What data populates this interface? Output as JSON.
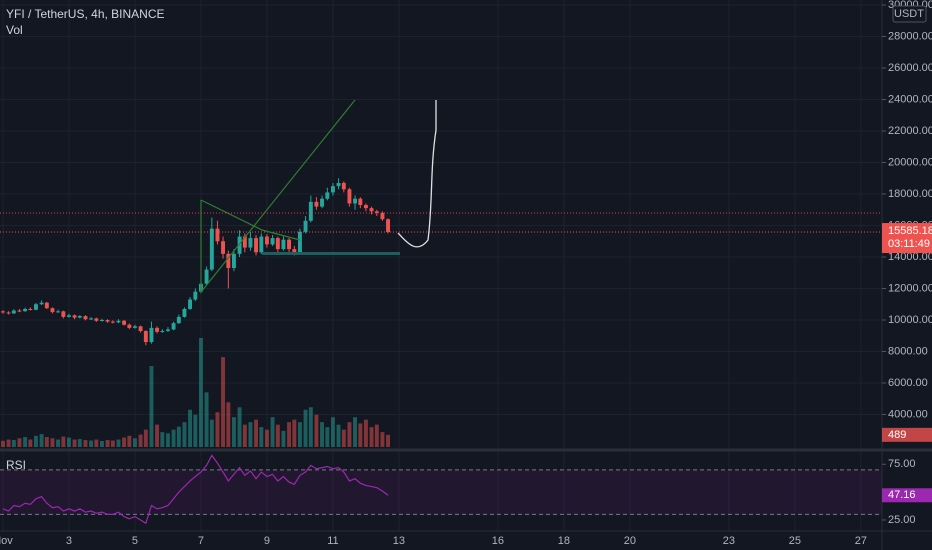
{
  "chart_data": {
    "type": "candlestick",
    "title": "YFI / TetherUS, 4h, BINANCE",
    "currency": "USDT",
    "countdown": "03:11:49",
    "up_color": "#26a69a",
    "down_color": "#ef5350",
    "grid": true,
    "x": [
      1,
      1.17,
      1.33,
      1.5,
      1.67,
      1.83,
      2,
      2.17,
      2.33,
      2.5,
      2.67,
      2.83,
      3,
      3.17,
      3.33,
      3.5,
      3.67,
      3.83,
      4,
      4.17,
      4.33,
      4.5,
      4.67,
      4.83,
      5,
      5.17,
      5.33,
      5.5,
      5.67,
      5.83,
      6,
      6.17,
      6.33,
      6.5,
      6.67,
      6.83,
      7,
      7.17,
      7.33,
      7.5,
      7.67,
      7.83,
      8,
      8.17,
      8.33,
      8.5,
      8.67,
      8.83,
      9,
      9.17,
      9.33,
      9.5,
      9.67,
      9.83,
      10,
      10.17,
      10.33,
      10.5,
      10.67,
      10.83,
      11,
      11.17,
      11.33,
      11.5,
      11.67,
      11.83,
      12,
      12.17,
      12.33,
      12.5,
      12.67
    ],
    "open": [
      10550,
      10480,
      10420,
      10600,
      10560,
      10700,
      10650,
      11000,
      11100,
      10750,
      10500,
      10550,
      10200,
      10300,
      10150,
      10250,
      10050,
      10100,
      9950,
      10000,
      9900,
      9850,
      9950,
      9700,
      9500,
      9600,
      9300,
      8600,
      9500,
      9250,
      9300,
      9400,
      9800,
      10200,
      10700,
      11300,
      11800,
      12300,
      13200,
      15800,
      15000,
      14200,
      13300,
      14200,
      15300,
      14600,
      15200,
      14300,
      15300,
      14800,
      15200,
      14500,
      15100,
      14500,
      14300,
      15600,
      16300,
      17500,
      17200,
      17700,
      18100,
      18500,
      18700,
      18300,
      17400,
      17700,
      17300,
      17100,
      16900,
      16800,
      16400
    ],
    "high": [
      10620,
      10560,
      10680,
      10700,
      10780,
      10800,
      11080,
      11250,
      11150,
      10800,
      10650,
      10600,
      10400,
      10350,
      10320,
      10300,
      10180,
      10150,
      10080,
      10050,
      9980,
      10050,
      10000,
      9780,
      9700,
      9650,
      9350,
      9900,
      9600,
      9420,
      9550,
      9900,
      10350,
      10800,
      11450,
      12000,
      12500,
      13400,
      16500,
      16300,
      15300,
      14400,
      14500,
      15700,
      15500,
      15600,
      15400,
      15500,
      15450,
      15400,
      15300,
      15300,
      15200,
      14700,
      15800,
      16600,
      17900,
      17800,
      17900,
      18400,
      18700,
      19000,
      18800,
      18400,
      17900,
      17800,
      17400,
      17200,
      17000,
      16900,
      16450
    ],
    "low": [
      10400,
      10350,
      10380,
      10500,
      10520,
      10600,
      10620,
      10950,
      10700,
      10420,
      10450,
      10100,
      10150,
      10050,
      10100,
      9980,
      10000,
      9880,
      9900,
      9820,
      9780,
      9800,
      9650,
      9420,
      9450,
      9200,
      8400,
      8500,
      9150,
      9180,
      9250,
      9350,
      9750,
      10150,
      10650,
      11200,
      11700,
      12200,
      13100,
      14800,
      13900,
      12000,
      13100,
      14000,
      14300,
      14400,
      14100,
      14200,
      14600,
      14700,
      14300,
      14400,
      14300,
      14100,
      14200,
      15500,
      16200,
      17000,
      17100,
      17600,
      17900,
      18300,
      18100,
      17200,
      17000,
      17100,
      16900,
      16700,
      16600,
      16300,
      15500
    ],
    "close": [
      10480,
      10420,
      10600,
      10560,
      10700,
      10650,
      11000,
      11100,
      10750,
      10500,
      10550,
      10200,
      10300,
      10150,
      10250,
      10050,
      10100,
      9950,
      10000,
      9900,
      9850,
      9950,
      9700,
      9500,
      9600,
      9300,
      8600,
      9500,
      9250,
      9300,
      9400,
      9800,
      10200,
      10700,
      11300,
      11800,
      12300,
      13200,
      15800,
      15000,
      14200,
      13300,
      14200,
      15300,
      14600,
      15200,
      14300,
      15300,
      14800,
      15200,
      14500,
      15100,
      14500,
      14300,
      15600,
      16300,
      17500,
      17200,
      17700,
      18100,
      18500,
      18700,
      18300,
      17400,
      17700,
      17300,
      17100,
      16900,
      16800,
      16400,
      15585.18
    ],
    "xlim": [
      0.91,
      27.64
    ],
    "xticks": [
      {
        "value": 1,
        "label": "Nov"
      },
      3,
      5,
      7,
      9,
      11,
      13,
      16,
      18,
      20,
      23,
      25,
      27
    ],
    "ylim": [
      1937,
      30317
    ],
    "yticks": [
      {
        "value": 4000,
        "label": "4000.00"
      },
      {
        "value": 6000,
        "label": "6000.00"
      },
      {
        "value": 8000,
        "label": "8000.00"
      },
      {
        "value": 10000,
        "label": "10000.00"
      },
      {
        "value": 12000,
        "label": "12000.00"
      },
      {
        "value": 14000,
        "label": "14000.00"
      },
      {
        "value": 16000,
        "label": "16000.00"
      },
      {
        "value": 18000,
        "label": "18000.00"
      },
      {
        "value": 20000,
        "label": "20000.00"
      },
      {
        "value": 22000,
        "label": "22000.00"
      },
      {
        "value": 24000,
        "label": "24000.00"
      },
      {
        "value": 26000,
        "label": "26000.00"
      },
      {
        "value": 28000,
        "label": "28000.00"
      },
      {
        "value": 30000,
        "label": "30000.00"
      }
    ],
    "volume": {
      "name": "Vol",
      "ylim": [
        0,
        18000
      ],
      "values": [
        250,
        300,
        280,
        350,
        400,
        300,
        450,
        520,
        400,
        350,
        300,
        420,
        380,
        300,
        320,
        280,
        260,
        300,
        240,
        280,
        260,
        300,
        380,
        450,
        350,
        500,
        700,
        3260,
        900,
        600,
        550,
        700,
        820,
        1000,
        1500,
        1300,
        4390,
        2200,
        1100,
        1400,
        3620,
        1800,
        1200,
        1600,
        900,
        1000,
        1100,
        800,
        700,
        1200,
        900,
        650,
        1000,
        1100,
        1000,
        1500,
        1600,
        1300,
        1000,
        800,
        1200,
        900,
        700,
        1000,
        1200,
        950,
        1100,
        800,
        900,
        600,
        489
      ]
    },
    "rsi": {
      "name": "RSI",
      "color": "#9c27b0",
      "ylim": [
        16,
        86
      ],
      "bands": [
        30,
        70
      ],
      "yticks": [
        {
          "value": 75,
          "label": "75.00"
        },
        {
          "value": 25,
          "label": "25.00"
        }
      ],
      "values": [
        35,
        33,
        38,
        37,
        40,
        39,
        44,
        46,
        40,
        36,
        37,
        33,
        35,
        33,
        35,
        32,
        33,
        31,
        32,
        30,
        30,
        32,
        28,
        26,
        28,
        25,
        22,
        38,
        35,
        36,
        38,
        44,
        50,
        55,
        60,
        64,
        68,
        74,
        83,
        76,
        68,
        60,
        66,
        72,
        65,
        69,
        62,
        68,
        64,
        66,
        60,
        64,
        59,
        57,
        65,
        68,
        74,
        71,
        72,
        73,
        71,
        72,
        68,
        60,
        62,
        58,
        56,
        55,
        54,
        51,
        47.16
      ]
    }
  }
}
